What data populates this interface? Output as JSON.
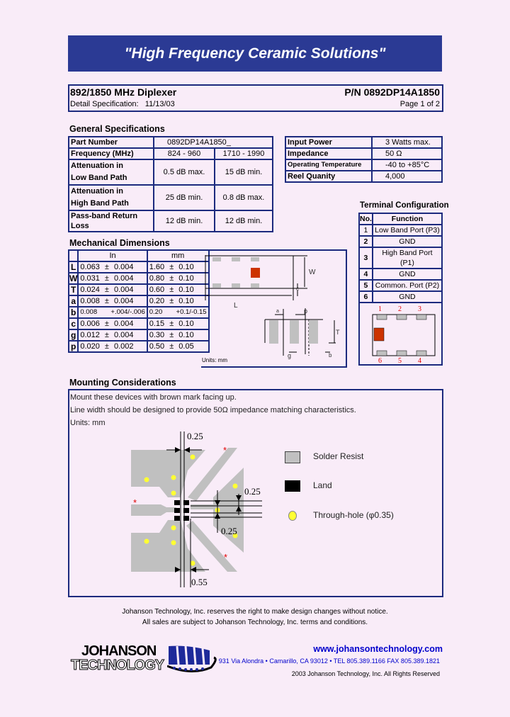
{
  "banner": "\"High Frequency Ceramic Solutions\"",
  "title": {
    "product": "892/1850 MHz Diplexer",
    "part_no": "P/N 0892DP14A1850",
    "spec_label": "Detail Specification:",
    "spec_date": "11/13/03",
    "page": "Page 1 of 2"
  },
  "general": {
    "heading": "General Specifications",
    "part_label": "Part Number",
    "part_value": "0892DP14A1850_",
    "freq_label": "Frequency (MHz)",
    "freq_low": "824 - 960",
    "freq_high": "1710 - 1990",
    "att_low_l1": "Attenuation in",
    "att_low_l2": "Low Band Path",
    "att_low_a": "0.5 dB max.",
    "att_low_b": "15 dB min.",
    "att_high_l1": "Attenuation in",
    "att_high_l2": "High Band Path",
    "att_high_a": "25 dB min.",
    "att_high_b": "0.8 dB max.",
    "rl_label": "Pass-band Return Loss",
    "rl_a": "12 dB min.",
    "rl_b": "12 dB min."
  },
  "ratings": [
    {
      "label": "Input Power",
      "value": "3 Watts max."
    },
    {
      "label": "Impedance",
      "value": "50 Ω"
    },
    {
      "label": "Operating Temperature",
      "value": "-40 to +85°C"
    },
    {
      "label": "Reel Quanity",
      "value": "4,000"
    }
  ],
  "terminal": {
    "heading": "Terminal Configuration",
    "col_no": "No.",
    "col_fn": "Function",
    "rows": [
      {
        "no": "1",
        "fn": "Low Band Port (P3)"
      },
      {
        "no": "2",
        "fn": "GND"
      },
      {
        "no": "3",
        "fn": "High Band Port (P1)"
      },
      {
        "no": "4",
        "fn": "GND"
      },
      {
        "no": "5",
        "fn": "Common. Port (P2)"
      },
      {
        "no": "6",
        "fn": "GND"
      }
    ],
    "pins_top": [
      "1",
      "2",
      "3"
    ],
    "pins_bottom": [
      "6",
      "5",
      "4"
    ]
  },
  "mech": {
    "heading": "Mechanical Dimensions",
    "col_in": "In",
    "col_mm": "mm",
    "units": "Units: mm",
    "rows": [
      {
        "k": "L",
        "in": "0.063",
        "in_tol": "±",
        "in_t": "0.004",
        "mm": "1.60",
        "mm_tol": "±",
        "mm_t": "0.10"
      },
      {
        "k": "W",
        "in": "0.031",
        "in_tol": "±",
        "in_t": "0.004",
        "mm": "0.80",
        "mm_tol": "±",
        "mm_t": "0.10"
      },
      {
        "k": "T",
        "in": "0.024",
        "in_tol": "±",
        "in_t": "0.004",
        "mm": "0.60",
        "mm_tol": "±",
        "mm_t": "0.10"
      },
      {
        "k": "a",
        "in": "0.008",
        "in_tol": "±",
        "in_t": "0.004",
        "mm": "0.20",
        "mm_tol": "±",
        "mm_t": "0.10"
      },
      {
        "k": "b",
        "in": "0.008",
        "in_tol": "",
        "in_t": "+.004/-.006",
        "mm": "0.20",
        "mm_tol": "",
        "mm_t": "+0.1/-0.15"
      },
      {
        "k": "c",
        "in": "0.006",
        "in_tol": "±",
        "in_t": "0.004",
        "mm": "0.15",
        "mm_tol": "±",
        "mm_t": "0.10"
      },
      {
        "k": "g",
        "in": "0.012",
        "in_tol": "±",
        "in_t": "0.004",
        "mm": "0.30",
        "mm_tol": "±",
        "mm_t": "0.10"
      },
      {
        "k": "p",
        "in": "0.020",
        "in_tol": "±",
        "in_t": "0.002",
        "mm": "0.50",
        "mm_tol": "±",
        "mm_t": "0.05"
      }
    ],
    "dim_labels": {
      "W": "W",
      "c": "c",
      "L": "L",
      "a": "a",
      "p": "p",
      "T": "T",
      "g": "g",
      "b": "b"
    }
  },
  "mounting": {
    "heading": "Mounting Considerations",
    "line1": "Mount these devices with brown mark facing up.",
    "line2": "Line width should be designed to provide 50Ω impedance matching characteristics.",
    "line3": "Units: mm",
    "dims": [
      "0.25",
      "0.25",
      "0.25",
      "0.55"
    ],
    "legend": [
      {
        "label": "Solder Resist",
        "color": "#c0c0c0"
      },
      {
        "label": "Land",
        "color": "#000000"
      },
      {
        "label": "Through-hole (φ0.35)",
        "color": "#ffff33"
      }
    ]
  },
  "footer": {
    "notice1": "Johanson Technology, Inc. reserves the right to make design changes without notice.",
    "notice2": "All sales are subject to Johanson Technology, Inc. terms and conditions.",
    "url": "www.johansontechnology.com",
    "address": "931 Via Alondra • Camarillo, CA 93012 • TEL 805.389.1166 FAX 805.389.1821",
    "copyright": "2003 Johanson Technology, Inc.  All Rights Reserved",
    "logo_line1": "JOHANSON",
    "logo_line2": "TECHNOLOGY"
  },
  "colors": {
    "banner": "#2b3a94",
    "border": "#1c2a7e",
    "mark": "#cc3300",
    "pin_label": "#e00000",
    "link": "#0000cc"
  }
}
